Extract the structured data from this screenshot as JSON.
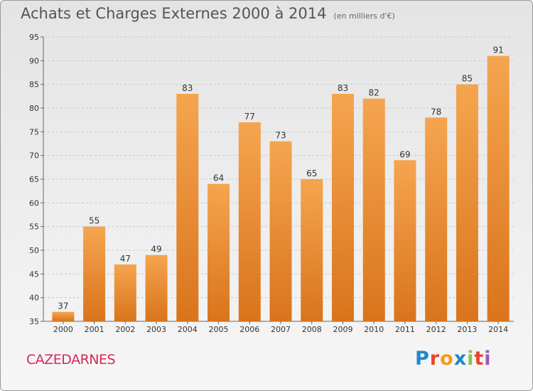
{
  "header": {
    "title": "Achats et Charges Externes 2000 à 2014",
    "subtitle": "(en milliers d'€)"
  },
  "footer": {
    "commune": "CAZEDARNES",
    "logo_text": "Proxiti",
    "logo_colors": [
      "#1e88c9",
      "#e8452c",
      "#f39c12",
      "#1e88c9",
      "#8bc34a",
      "#e8452c",
      "#9b59b6"
    ]
  },
  "colors": {
    "bar_light": "#f5a54f",
    "bar_dark": "#d9741c",
    "grid": "#c8c8c8",
    "text": "#333333"
  },
  "chart_data": {
    "type": "bar",
    "title": "Achats et Charges Externes 2000 à 2014",
    "subtitle": "(en milliers d'€)",
    "xlabel": "",
    "ylabel": "",
    "categories": [
      "2000",
      "2001",
      "2002",
      "2003",
      "2004",
      "2005",
      "2006",
      "2007",
      "2008",
      "2009",
      "2010",
      "2011",
      "2012",
      "2013",
      "2014"
    ],
    "values": [
      37,
      55,
      47,
      49,
      83,
      64,
      77,
      73,
      65,
      83,
      82,
      69,
      78,
      85,
      91
    ],
    "ylim": [
      35,
      95
    ],
    "yticks": [
      35,
      40,
      45,
      50,
      55,
      60,
      65,
      70,
      75,
      80,
      85,
      90,
      95
    ],
    "grid": true,
    "data_labels": true
  }
}
